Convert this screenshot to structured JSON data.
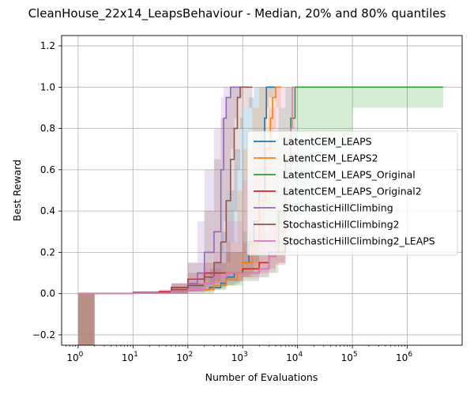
{
  "chart_data": {
    "type": "line",
    "title": "CleanHouse_22x14_LeapsBehaviour - Median, 20% and 80% quantiles",
    "xlabel": "Number of Evaluations",
    "ylabel": "Best Reward",
    "xscale": "log",
    "xlim": [
      0.5,
      10000000
    ],
    "ylim": [
      -0.25,
      1.25
    ],
    "x_ticks": [
      {
        "value": 1,
        "base": "10",
        "exp": "0"
      },
      {
        "value": 10,
        "base": "10",
        "exp": "1"
      },
      {
        "value": 100,
        "base": "10",
        "exp": "2"
      },
      {
        "value": 1000,
        "base": "10",
        "exp": "3"
      },
      {
        "value": 10000,
        "base": "10",
        "exp": "4"
      },
      {
        "value": 100000,
        "base": "10",
        "exp": "5"
      },
      {
        "value": 1000000,
        "base": "10",
        "exp": "6"
      }
    ],
    "y_ticks": [
      {
        "value": -0.2,
        "label": "−0.2"
      },
      {
        "value": 0.0,
        "label": "0.0"
      },
      {
        "value": 0.2,
        "label": "0.2"
      },
      {
        "value": 0.4,
        "label": "0.4"
      },
      {
        "value": 0.6,
        "label": "0.6"
      },
      {
        "value": 0.8,
        "label": "0.8"
      },
      {
        "value": 1.0,
        "label": "1.0"
      },
      {
        "value": 1.2,
        "label": "1.2"
      }
    ],
    "grid": true,
    "legend_position": "center-right",
    "series": [
      {
        "name": "LatentCEM_LEAPS",
        "color": "#1f77b4",
        "x": [
          1,
          10,
          50,
          100,
          250,
          400,
          500,
          700,
          900,
          1000,
          1300,
          1600,
          2000,
          2500,
          2700,
          3000,
          4000
        ],
        "y": [
          0.0,
          0.005,
          0.01,
          0.02,
          0.03,
          0.05,
          0.08,
          0.1,
          0.1,
          0.15,
          0.25,
          0.35,
          0.5,
          0.85,
          1.0,
          1.0,
          1.0
        ],
        "lo": [
          0.0,
          0.0,
          0.0,
          0.01,
          0.02,
          0.03,
          0.04,
          0.05,
          0.07,
          0.08,
          0.1,
          0.15,
          0.3,
          0.6,
          0.9,
          0.95,
          1.0
        ],
        "hi": [
          0.0,
          0.01,
          0.02,
          0.05,
          0.12,
          0.3,
          0.5,
          0.7,
          0.85,
          0.9,
          0.95,
          1.0,
          1.0,
          1.0,
          1.0,
          1.0,
          1.0
        ]
      },
      {
        "name": "LatentCEM_LEAPS2",
        "color": "#ff7f0e",
        "x": [
          1,
          10,
          50,
          100,
          300,
          500,
          800,
          1000,
          1500,
          2000,
          2600,
          3200,
          3500,
          4000,
          5000
        ],
        "y": [
          0.0,
          0.005,
          0.01,
          0.02,
          0.04,
          0.07,
          0.1,
          0.15,
          0.25,
          0.45,
          0.7,
          0.85,
          0.95,
          1.0,
          1.0
        ],
        "lo": [
          0.0,
          0.0,
          0.0,
          0.01,
          0.02,
          0.04,
          0.06,
          0.08,
          0.12,
          0.25,
          0.4,
          0.6,
          0.8,
          0.9,
          1.0
        ],
        "hi": [
          0.0,
          0.01,
          0.02,
          0.05,
          0.1,
          0.25,
          0.5,
          0.7,
          0.9,
          1.0,
          1.0,
          1.0,
          1.0,
          1.0,
          1.0
        ]
      },
      {
        "name": "LatentCEM_LEAPS_Original",
        "color": "#2ca02c",
        "x": [
          1,
          10,
          50,
          100,
          200,
          300,
          500,
          1000,
          2000,
          3000,
          4500,
          6000,
          7500,
          9000,
          20000,
          100000,
          4500000
        ],
        "y": [
          0.0,
          0.003,
          0.01,
          0.02,
          0.05,
          0.08,
          0.1,
          0.1,
          0.12,
          0.2,
          0.4,
          0.65,
          0.85,
          1.0,
          1.0,
          1.0,
          1.0
        ],
        "lo": [
          0.0,
          0.0,
          0.0,
          0.0,
          0.0,
          0.02,
          0.04,
          0.06,
          0.08,
          0.1,
          0.15,
          0.2,
          0.25,
          0.4,
          0.7,
          0.9,
          1.0
        ],
        "hi": [
          0.0,
          0.01,
          0.02,
          0.04,
          0.1,
          0.15,
          0.2,
          0.3,
          0.5,
          0.75,
          0.9,
          1.0,
          1.0,
          1.0,
          1.0,
          1.0,
          1.0
        ]
      },
      {
        "name": "LatentCEM_LEAPS_Original2",
        "color": "#d62728",
        "x": [
          1,
          10,
          30,
          50,
          100,
          200,
          500,
          1000,
          2000,
          3000,
          4000,
          6000
        ],
        "y": [
          0.0,
          0.005,
          0.01,
          0.03,
          0.07,
          0.1,
          0.1,
          0.12,
          0.15,
          0.18,
          0.2,
          0.25
        ],
        "lo": [
          0.0,
          0.0,
          0.0,
          0.01,
          0.03,
          0.05,
          0.06,
          0.08,
          0.1,
          0.12,
          0.14,
          0.16
        ],
        "hi": [
          0.0,
          0.01,
          0.02,
          0.05,
          0.1,
          0.15,
          0.2,
          0.25,
          0.3,
          0.35,
          0.4,
          0.45
        ]
      },
      {
        "name": "StochasticHillClimbing",
        "color": "#9467bd",
        "x": [
          1,
          10,
          50,
          100,
          150,
          200,
          300,
          400,
          450,
          500,
          600,
          700,
          800,
          1000
        ],
        "y": [
          0.0,
          0.005,
          0.02,
          0.05,
          0.1,
          0.2,
          0.3,
          0.6,
          0.85,
          0.95,
          1.0,
          1.0,
          1.0,
          1.0
        ],
        "lo": [
          0.0,
          0.0,
          0.0,
          0.01,
          0.03,
          0.06,
          0.1,
          0.2,
          0.35,
          0.5,
          0.7,
          0.85,
          0.95,
          1.0
        ],
        "hi": [
          0.0,
          0.01,
          0.05,
          0.15,
          0.35,
          0.6,
          0.8,
          0.95,
          1.0,
          1.0,
          1.0,
          1.0,
          1.0,
          1.0
        ]
      },
      {
        "name": "StochasticHillClimbing2",
        "color": "#8c564b",
        "x": [
          1,
          10,
          50,
          100,
          200,
          300,
          400,
          500,
          600,
          700,
          800,
          900,
          1000,
          1500
        ],
        "y": [
          0.0,
          0.005,
          0.02,
          0.04,
          0.08,
          0.15,
          0.25,
          0.45,
          0.65,
          0.8,
          0.95,
          1.0,
          1.0,
          1.0
        ],
        "lo": [
          0.0,
          0.0,
          0.0,
          0.01,
          0.03,
          0.06,
          0.1,
          0.15,
          0.25,
          0.4,
          0.6,
          0.8,
          0.9,
          1.0
        ],
        "hi": [
          0.0,
          0.01,
          0.05,
          0.15,
          0.4,
          0.65,
          0.85,
          0.95,
          1.0,
          1.0,
          1.0,
          1.0,
          1.0,
          1.0
        ]
      },
      {
        "name": "StochasticHillClimbing2_LEAPS",
        "color": "#e377c2",
        "x": [
          1,
          10,
          50,
          100,
          200,
          300,
          500,
          1000,
          2000,
          3000,
          4000,
          6000,
          7500,
          8000,
          9000
        ],
        "y": [
          0.0,
          0.003,
          0.01,
          0.02,
          0.05,
          0.08,
          0.1,
          0.1,
          0.12,
          0.18,
          0.3,
          0.6,
          0.8,
          1.0,
          1.0
        ],
        "lo": [
          0.0,
          0.0,
          0.0,
          0.0,
          0.02,
          0.04,
          0.06,
          0.07,
          0.08,
          0.1,
          0.15,
          0.3,
          0.5,
          0.8,
          1.0
        ],
        "hi": [
          0.0,
          0.01,
          0.02,
          0.05,
          0.12,
          0.2,
          0.35,
          0.55,
          0.75,
          0.9,
          1.0,
          1.0,
          1.0,
          1.0,
          1.0
        ]
      }
    ],
    "initial_block": {
      "color": "#b28479",
      "x": [
        1,
        2
      ],
      "y": [
        -0.25,
        0.0
      ]
    }
  }
}
